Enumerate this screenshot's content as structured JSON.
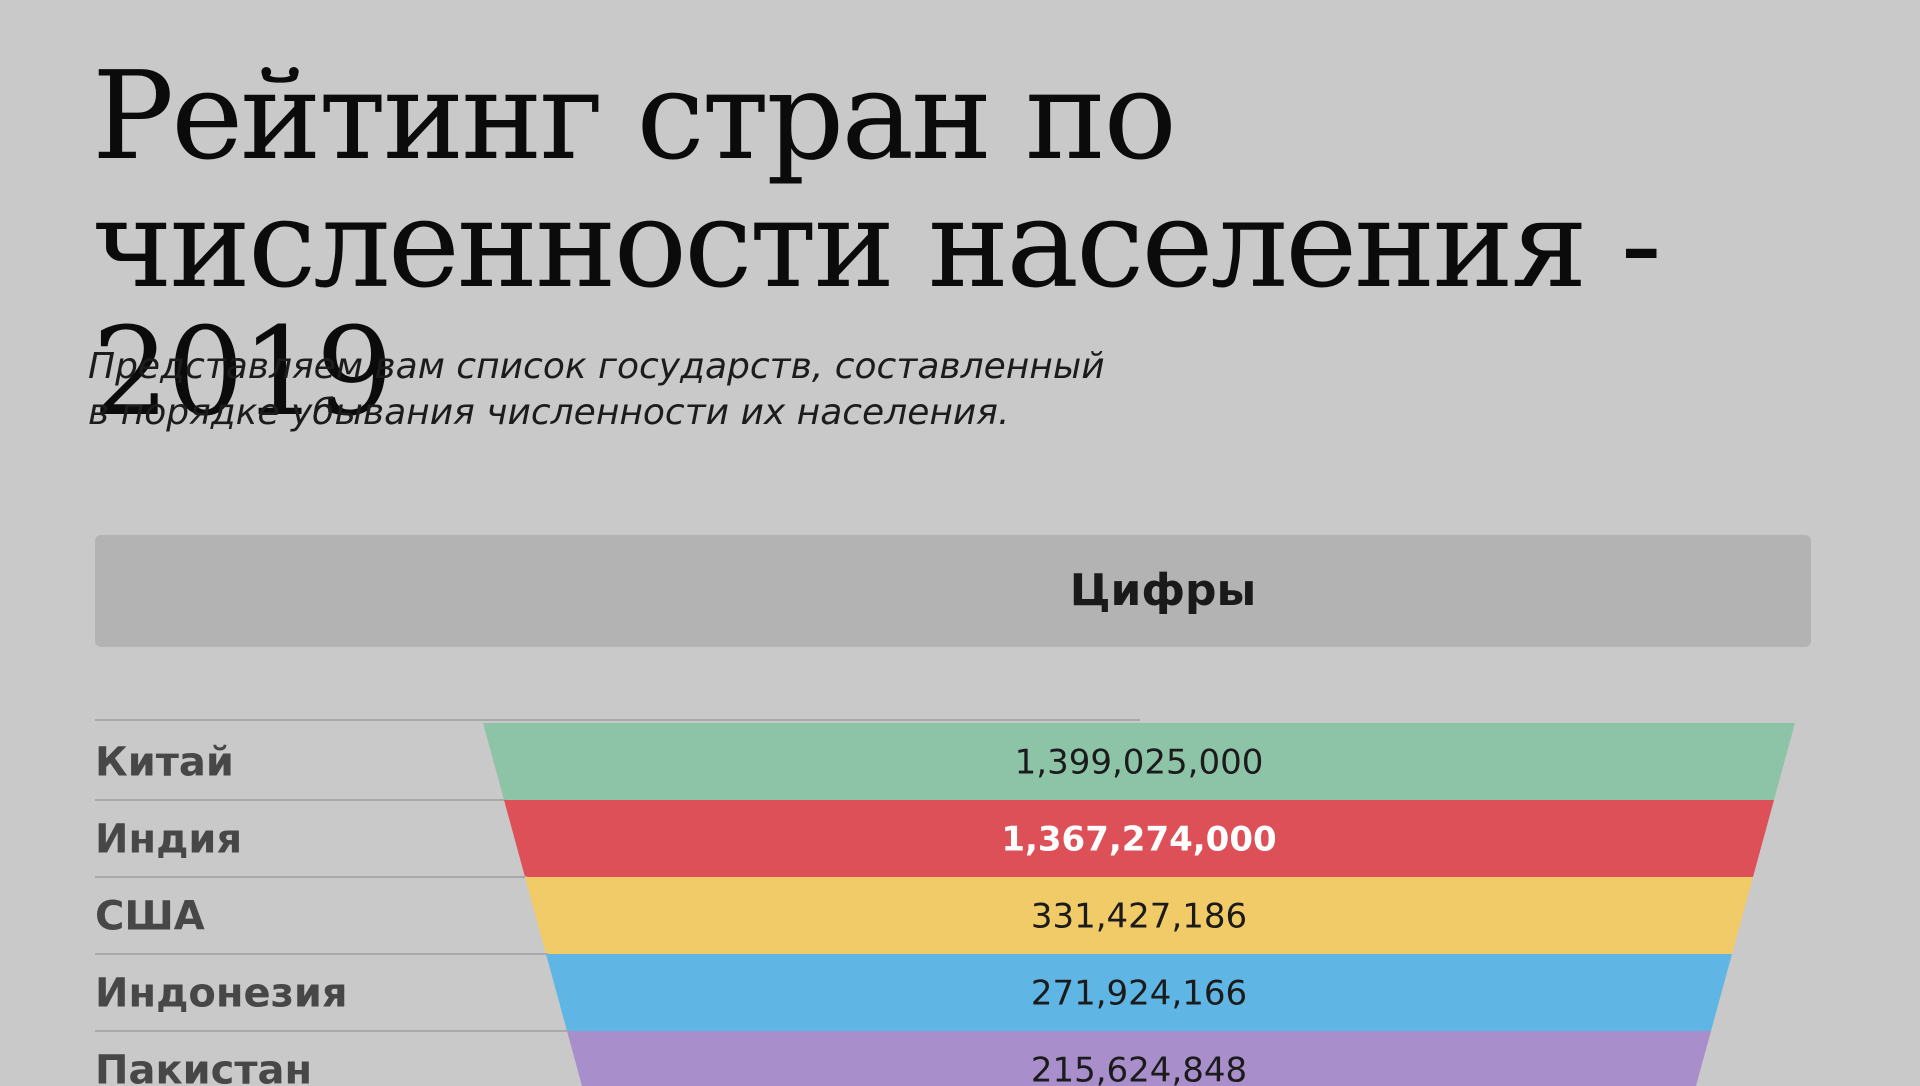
{
  "header": {
    "title": "Рейтинг стран по численности населения - 2019",
    "subtitle_line1": "Представляем вам список государств, составленный",
    "subtitle_line2": "в порядке убывания численности их населения."
  },
  "panel": {
    "label": "Цифры"
  },
  "chart_data": {
    "type": "bar",
    "categories": [
      "Китай",
      "Индия",
      "США",
      "Индонезия",
      "Пакистан"
    ],
    "values": [
      1399025000,
      1367274000,
      331427186,
      271924166,
      215624848
    ],
    "value_labels": [
      "1,399,025,000",
      "1,367,274,000",
      "331,427,186",
      "271,924,166",
      "215,624,848"
    ],
    "colors": [
      "#8dc4a8",
      "#de5058",
      "#f1cb67",
      "#5fb6e4",
      "#a88ecb"
    ],
    "title": "Рейтинг стран по численности населения - 2019",
    "xlabel": "",
    "ylabel": ""
  }
}
